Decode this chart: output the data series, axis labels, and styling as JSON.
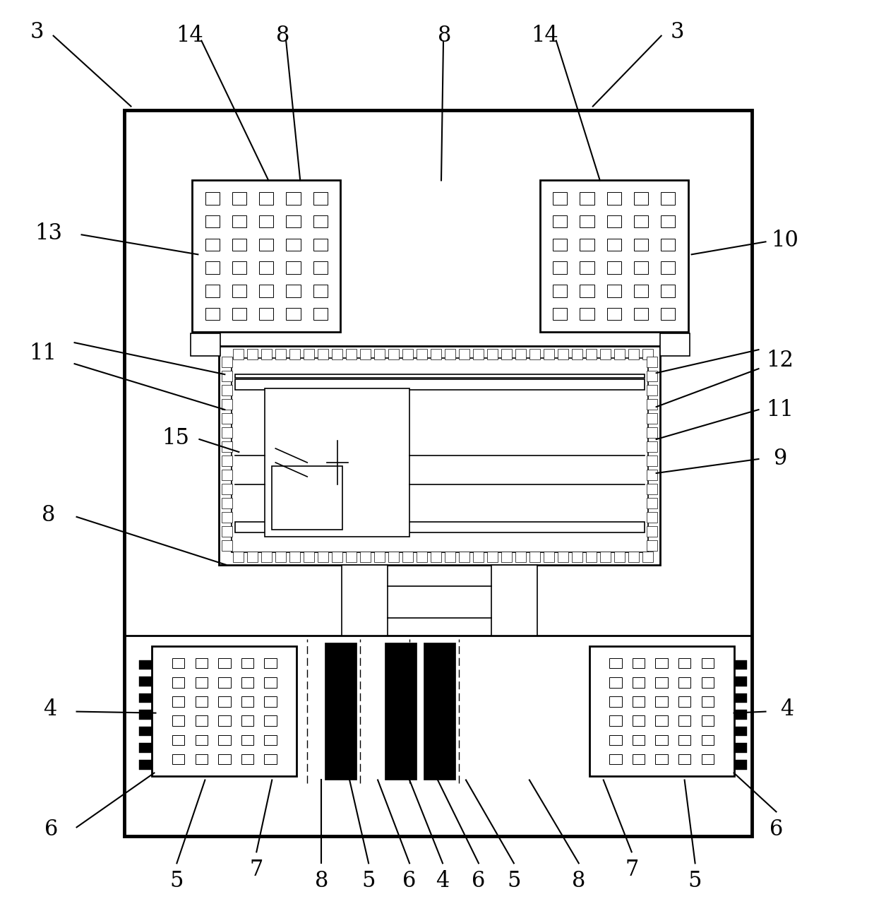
{
  "bg_color": "#ffffff",
  "line_color": "#000000",
  "lw_thin": 1.2,
  "lw_med": 2.0,
  "lw_thick": 3.5,
  "fig_width": 12.55,
  "fig_height": 12.9
}
